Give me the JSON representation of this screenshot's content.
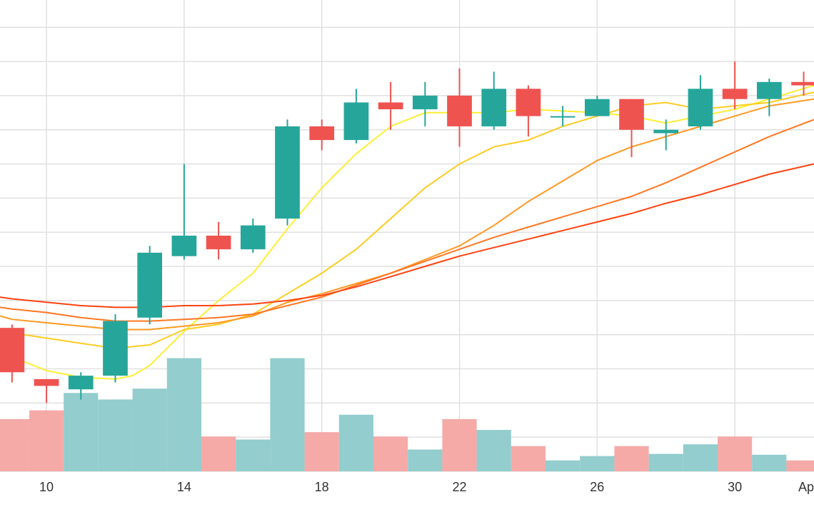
{
  "chart_data": {
    "type": "candlestick",
    "x_ticks": [
      {
        "day": 10,
        "label": "10"
      },
      {
        "day": 14,
        "label": "14"
      },
      {
        "day": 18,
        "label": "18"
      },
      {
        "day": 22,
        "label": "22"
      },
      {
        "day": 26,
        "label": "26"
      },
      {
        "day": 30,
        "label": "30"
      },
      {
        "day": 32.2,
        "label": "Ap"
      }
    ],
    "xlim": [
      8.65,
      32.3
    ],
    "ylim": [
      6,
      19.8
    ],
    "grid": true,
    "candles": [
      {
        "day": 9,
        "open": 10.2,
        "high": 10.3,
        "low": 8.6,
        "close": 8.9
      },
      {
        "day": 10,
        "open": 8.7,
        "high": 8.7,
        "low": 8.0,
        "close": 8.5
      },
      {
        "day": 11,
        "open": 8.4,
        "high": 8.9,
        "low": 8.1,
        "close": 8.8
      },
      {
        "day": 12,
        "open": 8.8,
        "high": 10.6,
        "low": 8.6,
        "close": 10.4
      },
      {
        "day": 13,
        "open": 10.5,
        "high": 12.6,
        "low": 10.3,
        "close": 12.4
      },
      {
        "day": 14,
        "open": 12.3,
        "high": 15.0,
        "low": 12.2,
        "close": 12.9
      },
      {
        "day": 15,
        "open": 12.9,
        "high": 13.3,
        "low": 12.2,
        "close": 12.5
      },
      {
        "day": 16,
        "open": 12.5,
        "high": 13.4,
        "low": 12.4,
        "close": 13.2
      },
      {
        "day": 17,
        "open": 13.4,
        "high": 16.3,
        "low": 13.2,
        "close": 16.1
      },
      {
        "day": 18,
        "open": 16.1,
        "high": 16.3,
        "low": 15.4,
        "close": 15.7
      },
      {
        "day": 19,
        "open": 15.7,
        "high": 17.2,
        "low": 15.6,
        "close": 16.8
      },
      {
        "day": 20,
        "open": 16.8,
        "high": 17.4,
        "low": 16.0,
        "close": 16.6
      },
      {
        "day": 21,
        "open": 16.6,
        "high": 17.4,
        "low": 16.1,
        "close": 17.0
      },
      {
        "day": 22,
        "open": 17.0,
        "high": 17.8,
        "low": 15.5,
        "close": 16.1
      },
      {
        "day": 23,
        "open": 16.1,
        "high": 17.7,
        "low": 16.0,
        "close": 17.2
      },
      {
        "day": 24,
        "open": 17.2,
        "high": 17.3,
        "low": 15.8,
        "close": 16.4
      },
      {
        "day": 25,
        "open": 16.4,
        "high": 16.7,
        "low": 16.1,
        "close": 16.4
      },
      {
        "day": 26,
        "open": 16.4,
        "high": 17.0,
        "low": 16.4,
        "close": 16.9
      },
      {
        "day": 27,
        "open": 16.9,
        "high": 16.9,
        "low": 15.2,
        "close": 16.0
      },
      {
        "day": 28,
        "open": 15.9,
        "high": 16.3,
        "low": 15.4,
        "close": 16.0
      },
      {
        "day": 29,
        "open": 16.1,
        "high": 17.6,
        "low": 16.0,
        "close": 17.2
      },
      {
        "day": 30,
        "open": 17.2,
        "high": 18.0,
        "low": 16.6,
        "close": 16.9
      },
      {
        "day": 31,
        "open": 16.9,
        "high": 17.5,
        "low": 16.4,
        "close": 17.4
      },
      {
        "day": 32,
        "open": 17.4,
        "high": 17.7,
        "low": 17.0,
        "close": 17.3
      }
    ],
    "volume": {
      "ylim": [
        0,
        3.2
      ],
      "values": [
        1.2,
        1.4,
        1.8,
        1.65,
        1.9,
        2.6,
        0.8,
        0.73,
        2.6,
        0.9,
        1.3,
        0.8,
        0.5,
        1.2,
        0.95,
        0.58,
        0.25,
        0.35,
        0.58,
        0.4,
        0.62,
        0.8,
        0.38,
        0.25
      ]
    },
    "moving_averages": [
      {
        "color": "#ffee33",
        "points": [
          [
            8.65,
            9.5
          ],
          [
            9,
            9.35
          ],
          [
            10,
            8.95
          ],
          [
            11,
            8.75
          ],
          [
            12,
            8.7
          ],
          [
            12.5,
            8.8
          ],
          [
            13,
            9.1
          ],
          [
            14,
            10.1
          ],
          [
            15,
            11.0
          ],
          [
            16,
            11.8
          ],
          [
            17,
            13.1
          ],
          [
            18,
            14.3
          ],
          [
            19,
            15.3
          ],
          [
            20,
            16.1
          ],
          [
            21,
            16.5
          ],
          [
            22,
            16.5
          ],
          [
            23,
            16.5
          ],
          [
            24,
            16.6
          ],
          [
            25,
            16.55
          ],
          [
            26,
            16.5
          ],
          [
            27,
            16.4
          ],
          [
            28,
            16.2
          ],
          [
            29,
            16.4
          ],
          [
            30,
            16.6
          ],
          [
            31,
            16.9
          ],
          [
            32.3,
            17.3
          ]
        ]
      },
      {
        "color": "#ffcc22",
        "points": [
          [
            8.65,
            10.1
          ],
          [
            9,
            10.05
          ],
          [
            10,
            9.9
          ],
          [
            11,
            9.75
          ],
          [
            12,
            9.6
          ],
          [
            13,
            9.7
          ],
          [
            14,
            10.15
          ],
          [
            15,
            10.3
          ],
          [
            16,
            10.6
          ],
          [
            17,
            11.2
          ],
          [
            18,
            11.8
          ],
          [
            19,
            12.5
          ],
          [
            20,
            13.4
          ],
          [
            21,
            14.3
          ],
          [
            22,
            15.0
          ],
          [
            23,
            15.5
          ],
          [
            24,
            15.7
          ],
          [
            25,
            16.1
          ],
          [
            26,
            16.4
          ],
          [
            27,
            16.7
          ],
          [
            28,
            16.8
          ],
          [
            29,
            16.6
          ],
          [
            30,
            16.7
          ],
          [
            31,
            16.8
          ],
          [
            32.3,
            17.1
          ]
        ]
      },
      {
        "color": "#ff9922",
        "points": [
          [
            8.65,
            10.55
          ],
          [
            9,
            10.45
          ],
          [
            10,
            10.35
          ],
          [
            11,
            10.25
          ],
          [
            12,
            10.15
          ],
          [
            13,
            10.15
          ],
          [
            14,
            10.25
          ],
          [
            15,
            10.35
          ],
          [
            16,
            10.55
          ],
          [
            17,
            10.95
          ],
          [
            18,
            11.2
          ],
          [
            19,
            11.5
          ],
          [
            20,
            11.8
          ],
          [
            21,
            12.2
          ],
          [
            22,
            12.6
          ],
          [
            23,
            13.2
          ],
          [
            24,
            13.9
          ],
          [
            25,
            14.5
          ],
          [
            26,
            15.1
          ],
          [
            27,
            15.5
          ],
          [
            28,
            15.8
          ],
          [
            29,
            16.1
          ],
          [
            30,
            16.4
          ],
          [
            31,
            16.7
          ],
          [
            32.3,
            16.9
          ]
        ]
      },
      {
        "color": "#ff7722",
        "points": [
          [
            8.65,
            10.8
          ],
          [
            9,
            10.75
          ],
          [
            10,
            10.65
          ],
          [
            11,
            10.5
          ],
          [
            12,
            10.4
          ],
          [
            13,
            10.4
          ],
          [
            14,
            10.45
          ],
          [
            15,
            10.5
          ],
          [
            16,
            10.6
          ],
          [
            17,
            10.85
          ],
          [
            18,
            11.1
          ],
          [
            19,
            11.45
          ],
          [
            20,
            11.8
          ],
          [
            21,
            12.15
          ],
          [
            22,
            12.5
          ],
          [
            23,
            12.85
          ],
          [
            24,
            13.15
          ],
          [
            25,
            13.45
          ],
          [
            26,
            13.75
          ],
          [
            27,
            14.05
          ],
          [
            28,
            14.45
          ],
          [
            29,
            14.9
          ],
          [
            30,
            15.35
          ],
          [
            31,
            15.8
          ],
          [
            32.3,
            16.3
          ]
        ]
      },
      {
        "color": "#ff4411",
        "points": [
          [
            8.65,
            11.1
          ],
          [
            9,
            11.05
          ],
          [
            10,
            10.95
          ],
          [
            11,
            10.85
          ],
          [
            12,
            10.8
          ],
          [
            13,
            10.8
          ],
          [
            14,
            10.85
          ],
          [
            15,
            10.85
          ],
          [
            16,
            10.9
          ],
          [
            17,
            11.0
          ],
          [
            18,
            11.15
          ],
          [
            19,
            11.4
          ],
          [
            20,
            11.7
          ],
          [
            21,
            12.0
          ],
          [
            22,
            12.3
          ],
          [
            23,
            12.55
          ],
          [
            24,
            12.8
          ],
          [
            25,
            13.05
          ],
          [
            26,
            13.3
          ],
          [
            27,
            13.55
          ],
          [
            28,
            13.85
          ],
          [
            29,
            14.1
          ],
          [
            30,
            14.4
          ],
          [
            31,
            14.7
          ],
          [
            32.3,
            15.0
          ]
        ]
      }
    ],
    "colors": {
      "up": "#26a69a",
      "down": "#ef5350",
      "up_volume": "#93cdcd",
      "down_volume": "#f5aaa8",
      "grid": "#e0e0e0"
    }
  }
}
